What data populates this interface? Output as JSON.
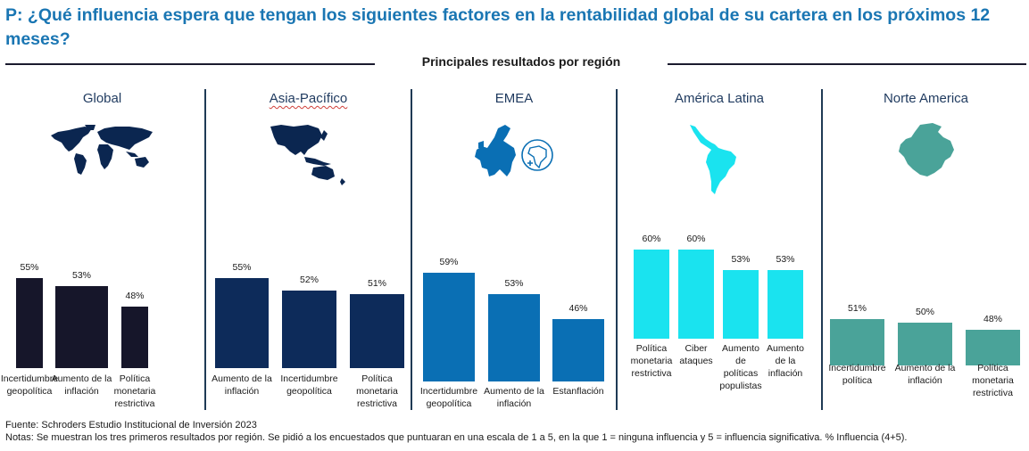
{
  "title": "P: ¿Qué influencia espera que tengan los siguientes factores en la rentabilidad global de su cartera en los próximos 12 meses?",
  "subtitle": "Principales resultados por región",
  "footer": {
    "source": "Fuente: Schroders Estudio Institucional de Inversión 2023",
    "notes": "Notas: Se muestran los tres primeros resultados por región. Se pidió a los encuestados que puntuaran en una escala de 1 a 5, en la que 1 = ninguna influencia y 5 = influencia significativa. % Influencia (4+5)."
  },
  "chart_data": [
    {
      "type": "bar",
      "title": "Global",
      "map_icon": "world-map-icon",
      "color": "#16162a",
      "categories": [
        "Incertidumbre geopolítica",
        "Aumento de la inflación",
        "Política monetaria restrictiva"
      ],
      "values": [
        55,
        53,
        48
      ],
      "value_labels": [
        "55%",
        "53%",
        "48%"
      ],
      "unit": "%"
    },
    {
      "type": "bar",
      "title": "Asia-Pacífico",
      "map_icon": "asia-pacific-map-icon",
      "color": "#0d2b5a",
      "categories": [
        "Aumento de la inflación",
        "Incertidumbre geopolítica",
        "Política monetaria restrictiva"
      ],
      "values": [
        55,
        52,
        51
      ],
      "value_labels": [
        "55%",
        "52%",
        "51%"
      ],
      "unit": "%"
    },
    {
      "type": "bar",
      "title": "EMEA",
      "map_icon": "europe-africa-map-icon",
      "color": "#0a6fb4",
      "categories": [
        "Incertidumbre geopolítica",
        "Aumento de la inflación",
        "Estanflación"
      ],
      "values": [
        59,
        53,
        46
      ],
      "value_labels": [
        "59%",
        "53%",
        "46%"
      ],
      "unit": "%"
    },
    {
      "type": "bar",
      "title": "América Latina",
      "map_icon": "latin-america-map-icon",
      "color": "#1ae3ef",
      "categories": [
        "Política monetaria restrictiva",
        "Ciber ataques",
        "Aumento de políticas populistas",
        "Aumento de la inflación"
      ],
      "values": [
        60,
        60,
        53,
        53
      ],
      "value_labels": [
        "60%",
        "60%",
        "53%",
        "53%"
      ],
      "unit": "%"
    },
    {
      "type": "bar",
      "title": "Norte America",
      "map_icon": "north-america-map-icon",
      "color": "#4aa399",
      "categories": [
        "Incertidumbre política",
        "Aumento de la inflación",
        "Política monetaria restrictiva"
      ],
      "values": [
        51,
        50,
        48
      ],
      "value_labels": [
        "51%",
        "50%",
        "48%"
      ],
      "unit": "%"
    }
  ]
}
